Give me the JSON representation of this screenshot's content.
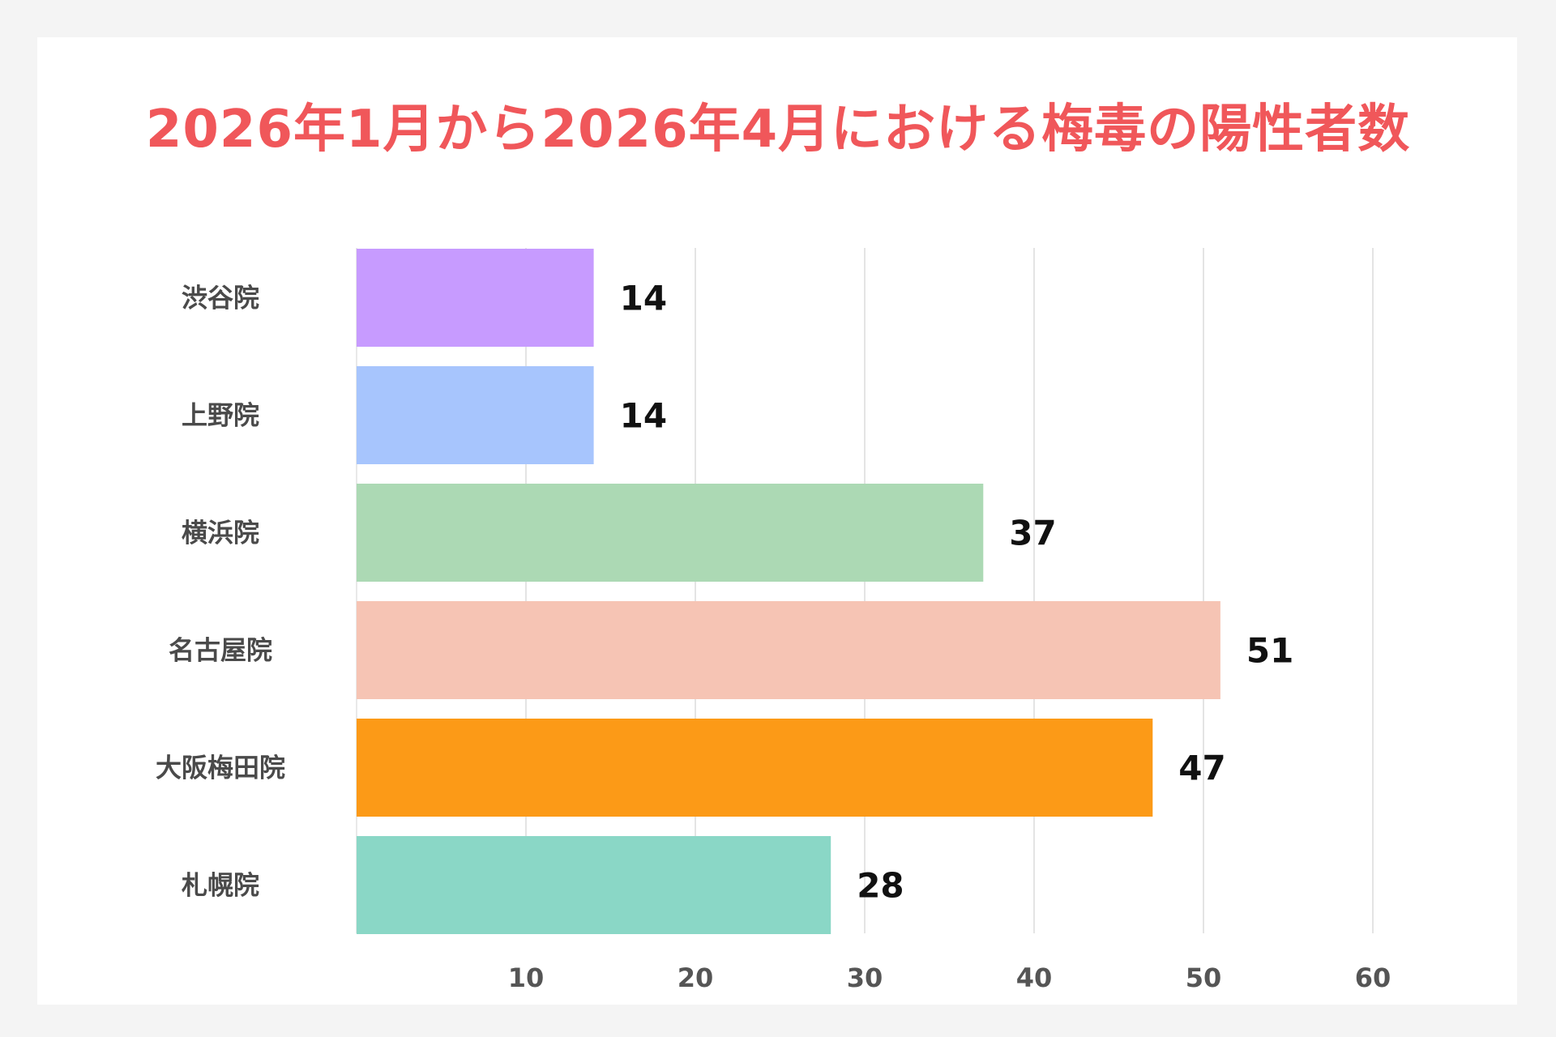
{
  "chart_data": {
    "type": "bar",
    "orientation": "horizontal",
    "title": "2026年1月から2026年4月における梅毒の陽性者数",
    "xlabel": "",
    "ylabel": "",
    "categories": [
      "渋谷院",
      "上野院",
      "横浜院",
      "名古屋院",
      "大阪梅田院",
      "札幌院"
    ],
    "values": [
      14,
      14,
      37,
      51,
      47,
      28
    ],
    "colors": [
      "#c79bff",
      "#a7c5fd",
      "#acd9b4",
      "#f6c4b4",
      "#fc9a17",
      "#8ad7c6"
    ],
    "xlim": [
      0,
      60
    ],
    "xticks": [
      10,
      20,
      30,
      40,
      50,
      60
    ],
    "grid": "vertical",
    "data_labels": true
  }
}
